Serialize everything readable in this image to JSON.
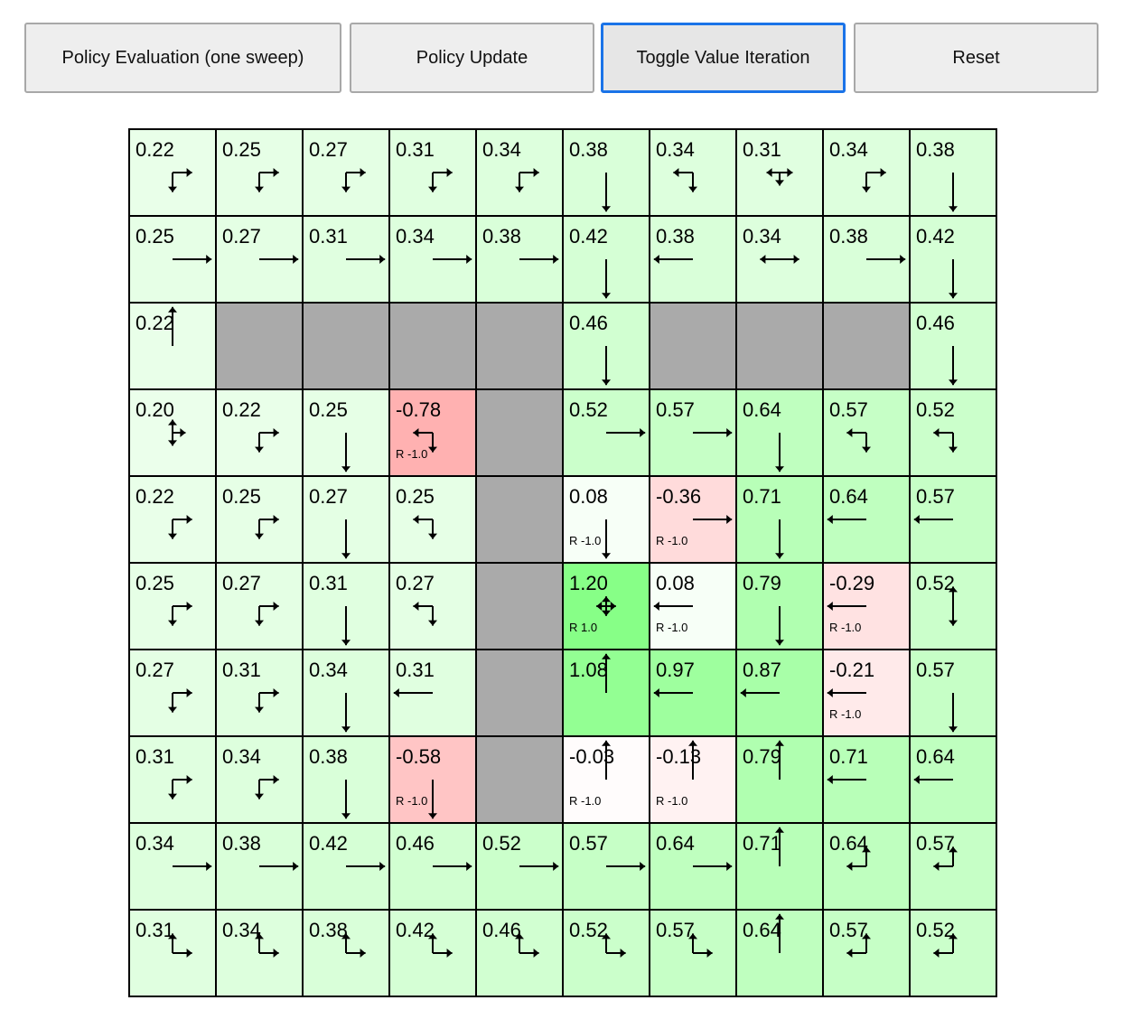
{
  "toolbar": {
    "buttons": [
      {
        "label": "Policy Evaluation (one sweep)",
        "active": false
      },
      {
        "label": "Policy Update",
        "active": false
      },
      {
        "label": "Toggle Value Iteration",
        "active": true
      },
      {
        "label": "Reset",
        "active": false
      }
    ]
  },
  "colors": {
    "wall": "#aaaaaa",
    "grid_line": "#000000",
    "active_border": "#1a73e8"
  },
  "gridworld": {
    "rows": [
      [
        {
          "v": "0.22",
          "p": "DR"
        },
        {
          "v": "0.25",
          "p": "DR"
        },
        {
          "v": "0.27",
          "p": "DR"
        },
        {
          "v": "0.31",
          "p": "DR"
        },
        {
          "v": "0.34",
          "p": "DR"
        },
        {
          "v": "0.38",
          "p": "D"
        },
        {
          "v": "0.34",
          "p": "LD"
        },
        {
          "v": "0.31",
          "p": "LRD"
        },
        {
          "v": "0.34",
          "p": "DR"
        },
        {
          "v": "0.38",
          "p": "D"
        }
      ],
      [
        {
          "v": "0.25",
          "p": "R"
        },
        {
          "v": "0.27",
          "p": "R"
        },
        {
          "v": "0.31",
          "p": "R"
        },
        {
          "v": "0.34",
          "p": "R"
        },
        {
          "v": "0.38",
          "p": "R"
        },
        {
          "v": "0.42",
          "p": "D"
        },
        {
          "v": "0.38",
          "p": "L"
        },
        {
          "v": "0.34",
          "p": "LR"
        },
        {
          "v": "0.38",
          "p": "R"
        },
        {
          "v": "0.42",
          "p": "D"
        }
      ],
      [
        {
          "v": "0.22",
          "p": "U"
        },
        {
          "wall": true
        },
        {
          "wall": true
        },
        {
          "wall": true
        },
        {
          "wall": true
        },
        {
          "v": "0.46",
          "p": "D"
        },
        {
          "wall": true
        },
        {
          "wall": true
        },
        {
          "wall": true
        },
        {
          "v": "0.46",
          "p": "D"
        }
      ],
      [
        {
          "v": "0.20",
          "p": "UDR"
        },
        {
          "v": "0.22",
          "p": "DR"
        },
        {
          "v": "0.25",
          "p": "D"
        },
        {
          "v": "-0.78",
          "p": "LD",
          "r": "R -1.0"
        },
        {
          "wall": true
        },
        {
          "v": "0.52",
          "p": "R"
        },
        {
          "v": "0.57",
          "p": "R"
        },
        {
          "v": "0.64",
          "p": "D"
        },
        {
          "v": "0.57",
          "p": "LD"
        },
        {
          "v": "0.52",
          "p": "LD"
        }
      ],
      [
        {
          "v": "0.22",
          "p": "DR"
        },
        {
          "v": "0.25",
          "p": "DR"
        },
        {
          "v": "0.27",
          "p": "D"
        },
        {
          "v": "0.25",
          "p": "LD"
        },
        {
          "wall": true
        },
        {
          "v": "0.08",
          "p": "D",
          "r": "R -1.0"
        },
        {
          "v": "-0.36",
          "p": "R",
          "r": "R -1.0"
        },
        {
          "v": "0.71",
          "p": "D"
        },
        {
          "v": "0.64",
          "p": "L"
        },
        {
          "v": "0.57",
          "p": "L"
        }
      ],
      [
        {
          "v": "0.25",
          "p": "DR"
        },
        {
          "v": "0.27",
          "p": "DR"
        },
        {
          "v": "0.31",
          "p": "D"
        },
        {
          "v": "0.27",
          "p": "LD"
        },
        {
          "wall": true
        },
        {
          "v": "1.20",
          "p": "ULRD",
          "r": "R 1.0"
        },
        {
          "v": "0.08",
          "p": "L",
          "r": "R -1.0"
        },
        {
          "v": "0.79",
          "p": "D"
        },
        {
          "v": "-0.29",
          "p": "L",
          "r": "R -1.0"
        },
        {
          "v": "0.52",
          "p": "UD"
        }
      ],
      [
        {
          "v": "0.27",
          "p": "DR"
        },
        {
          "v": "0.31",
          "p": "DR"
        },
        {
          "v": "0.34",
          "p": "D"
        },
        {
          "v": "0.31",
          "p": "L"
        },
        {
          "wall": true
        },
        {
          "v": "1.08",
          "p": "U"
        },
        {
          "v": "0.97",
          "p": "L"
        },
        {
          "v": "0.87",
          "p": "L"
        },
        {
          "v": "-0.21",
          "p": "L",
          "r": "R -1.0"
        },
        {
          "v": "0.57",
          "p": "D"
        }
      ],
      [
        {
          "v": "0.31",
          "p": "DR"
        },
        {
          "v": "0.34",
          "p": "DR"
        },
        {
          "v": "0.38",
          "p": "D"
        },
        {
          "v": "-0.58",
          "p": "D",
          "r": "R -1.0"
        },
        {
          "wall": true
        },
        {
          "v": "-0.03",
          "p": "U",
          "r": "R -1.0"
        },
        {
          "v": "-0.13",
          "p": "U",
          "r": "R -1.0"
        },
        {
          "v": "0.79",
          "p": "U"
        },
        {
          "v": "0.71",
          "p": "L"
        },
        {
          "v": "0.64",
          "p": "L"
        }
      ],
      [
        {
          "v": "0.34",
          "p": "R"
        },
        {
          "v": "0.38",
          "p": "R"
        },
        {
          "v": "0.42",
          "p": "R"
        },
        {
          "v": "0.46",
          "p": "R"
        },
        {
          "v": "0.52",
          "p": "R"
        },
        {
          "v": "0.57",
          "p": "R"
        },
        {
          "v": "0.64",
          "p": "R"
        },
        {
          "v": "0.71",
          "p": "U"
        },
        {
          "v": "0.64",
          "p": "LU"
        },
        {
          "v": "0.57",
          "p": "LU"
        }
      ],
      [
        {
          "v": "0.31",
          "p": "UR"
        },
        {
          "v": "0.34",
          "p": "UR"
        },
        {
          "v": "0.38",
          "p": "UR"
        },
        {
          "v": "0.42",
          "p": "UR"
        },
        {
          "v": "0.46",
          "p": "UR"
        },
        {
          "v": "0.52",
          "p": "UR"
        },
        {
          "v": "0.57",
          "p": "UR"
        },
        {
          "v": "0.64",
          "p": "U"
        },
        {
          "v": "0.57",
          "p": "LU"
        },
        {
          "v": "0.52",
          "p": "LU"
        }
      ]
    ]
  }
}
